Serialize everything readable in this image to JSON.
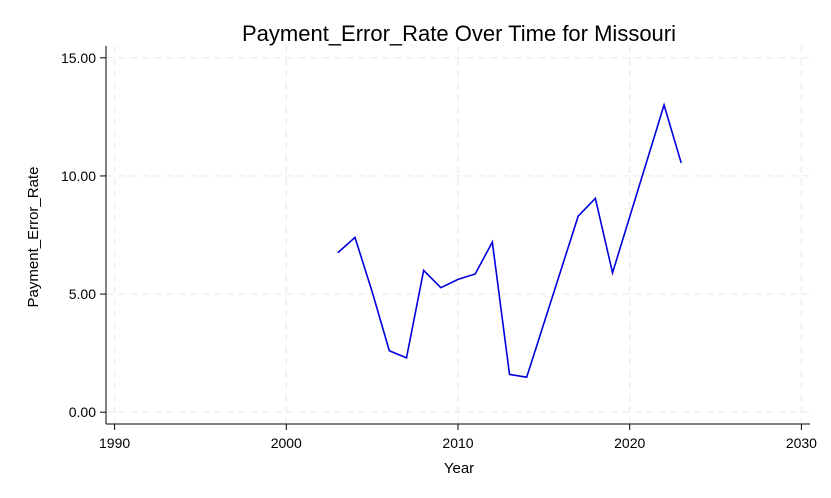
{
  "chart_data": {
    "type": "line",
    "title": "Payment_Error_Rate Over Time for Missouri",
    "xlabel": "Year",
    "ylabel": "Payment_Error_Rate",
    "xlim": [
      1989.5,
      2030.5
    ],
    "ylim": [
      -0.5,
      15.5
    ],
    "xticks": [
      1990,
      2000,
      2010,
      2020,
      2030
    ],
    "yticks": [
      0,
      5,
      10,
      15
    ],
    "ytick_labels": [
      "0.00",
      "5.00",
      "10.00",
      "15.00"
    ],
    "grid": true,
    "series": [
      {
        "name": "Payment_Error_Rate",
        "color": "#0000dd",
        "x": [
          2003,
          2004,
          2005,
          2006,
          2007,
          2008,
          2009,
          2010,
          2011,
          2012,
          2013,
          2014,
          2017,
          2018,
          2019,
          2022,
          2023
        ],
        "y": [
          6.75,
          7.4,
          5.1,
          2.6,
          2.3,
          6.0,
          5.27,
          5.62,
          5.85,
          7.2,
          1.6,
          1.48,
          8.3,
          9.05,
          5.9,
          13.0,
          10.55
        ]
      }
    ]
  }
}
